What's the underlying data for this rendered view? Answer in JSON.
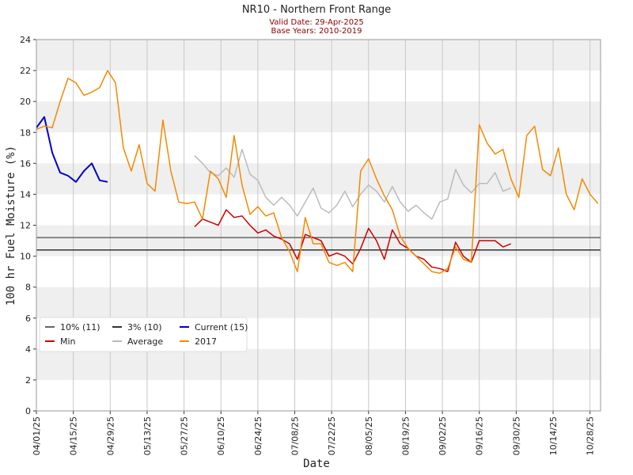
{
  "chart_data": {
    "type": "line",
    "title": "NR10 - Northern Front Range",
    "subtitle": [
      "Valid Date: 29-Apr-2025",
      "Base Years: 2010-2019"
    ],
    "xlabel": "Date",
    "ylabel": "100 hr Fuel Moisture (%)",
    "xlim": [
      "2025-04-01",
      "2025-11-01"
    ],
    "ylim": [
      0,
      24
    ],
    "yticks": [
      0,
      2,
      4,
      6,
      8,
      10,
      12,
      14,
      16,
      18,
      20,
      22,
      24
    ],
    "xticks": [
      {
        "value": "2025-04-01",
        "label": "04/01/25"
      },
      {
        "value": "2025-04-15",
        "label": "04/15/25"
      },
      {
        "value": "2025-04-29",
        "label": "04/29/25"
      },
      {
        "value": "2025-05-13",
        "label": "05/13/25"
      },
      {
        "value": "2025-05-27",
        "label": "05/27/25"
      },
      {
        "value": "2025-06-10",
        "label": "06/10/25"
      },
      {
        "value": "2025-06-24",
        "label": "06/24/25"
      },
      {
        "value": "2025-07-08",
        "label": "07/08/25"
      },
      {
        "value": "2025-07-22",
        "label": "07/22/25"
      },
      {
        "value": "2025-08-05",
        "label": "08/05/25"
      },
      {
        "value": "2025-08-19",
        "label": "08/19/25"
      },
      {
        "value": "2025-09-02",
        "label": "09/02/25"
      },
      {
        "value": "2025-09-16",
        "label": "09/16/25"
      },
      {
        "value": "2025-09-30",
        "label": "09/30/25"
      },
      {
        "value": "2025-10-14",
        "label": "10/14/25"
      },
      {
        "value": "2025-10-28",
        "label": "10/28/25"
      }
    ],
    "grid": true,
    "bands": true,
    "legend": "lower left",
    "x": [
      "2025-04-01",
      "2025-04-04",
      "2025-04-07",
      "2025-04-10",
      "2025-04-13",
      "2025-04-16",
      "2025-04-19",
      "2025-04-22",
      "2025-04-25",
      "2025-04-28",
      "2025-05-01",
      "2025-05-04",
      "2025-05-07",
      "2025-05-10",
      "2025-05-13",
      "2025-05-16",
      "2025-05-19",
      "2025-05-22",
      "2025-05-25",
      "2025-05-28",
      "2025-05-31",
      "2025-06-03",
      "2025-06-06",
      "2025-06-09",
      "2025-06-12",
      "2025-06-15",
      "2025-06-18",
      "2025-06-21",
      "2025-06-24",
      "2025-06-27",
      "2025-06-30",
      "2025-07-03",
      "2025-07-06",
      "2025-07-09",
      "2025-07-12",
      "2025-07-15",
      "2025-07-18",
      "2025-07-21",
      "2025-07-24",
      "2025-07-27",
      "2025-07-30",
      "2025-08-02",
      "2025-08-05",
      "2025-08-08",
      "2025-08-11",
      "2025-08-14",
      "2025-08-17",
      "2025-08-20",
      "2025-08-23",
      "2025-08-26",
      "2025-08-29",
      "2025-09-01",
      "2025-09-04",
      "2025-09-07",
      "2025-09-10",
      "2025-09-13",
      "2025-09-16",
      "2025-09-19",
      "2025-09-22",
      "2025-09-25",
      "2025-09-28",
      "2025-10-01",
      "2025-10-04",
      "2025-10-07",
      "2025-10-10",
      "2025-10-13",
      "2025-10-16",
      "2025-10-19",
      "2025-10-22",
      "2025-10-25",
      "2025-10-28",
      "2025-10-31"
    ],
    "reference_lines": [
      {
        "name": "10% (11)",
        "color": "#666666",
        "value": 11.2
      },
      {
        "name": "3% (10)",
        "color": "#333333",
        "value": 10.4
      }
    ],
    "series": [
      {
        "name": "Current (15)",
        "color": "#0000cc",
        "values": [
          18.3,
          19.0,
          16.7,
          15.4,
          15.2,
          14.8,
          15.5,
          16.0,
          14.9,
          14.8,
          null,
          null,
          null,
          null,
          null,
          null,
          null,
          null,
          null,
          null,
          null,
          null,
          null,
          null,
          null,
          null,
          null,
          null,
          null,
          null,
          null,
          null,
          null,
          null,
          null,
          null,
          null,
          null,
          null,
          null,
          null,
          null,
          null,
          null,
          null,
          null,
          null,
          null,
          null,
          null,
          null,
          null,
          null,
          null,
          null,
          null,
          null,
          null,
          null,
          null,
          null,
          null,
          null,
          null,
          null,
          null,
          null,
          null,
          null,
          null,
          null,
          null
        ]
      },
      {
        "name": "Min",
        "color": "#cc0000",
        "values": [
          null,
          null,
          null,
          null,
          null,
          null,
          null,
          null,
          null,
          null,
          null,
          null,
          null,
          null,
          null,
          null,
          null,
          null,
          null,
          null,
          11.9,
          12.4,
          12.2,
          12.0,
          13.0,
          12.5,
          12.6,
          12.0,
          11.5,
          11.7,
          11.3,
          11.1,
          10.8,
          9.8,
          11.4,
          11.2,
          11.0,
          10.0,
          10.2,
          10.0,
          9.5,
          10.5,
          11.8,
          11.0,
          9.8,
          11.7,
          10.8,
          10.5,
          10.0,
          9.8,
          9.3,
          9.2,
          9.0,
          10.9,
          10.0,
          9.6,
          11.0,
          11.0,
          11.0,
          10.6,
          10.8,
          null,
          null,
          null,
          null,
          null,
          null,
          null,
          null,
          null,
          null,
          null
        ]
      },
      {
        "name": "Average",
        "color": "#bbbbbb",
        "values": [
          null,
          null,
          null,
          null,
          null,
          null,
          null,
          null,
          null,
          null,
          null,
          null,
          null,
          null,
          null,
          null,
          null,
          null,
          null,
          null,
          16.5,
          16.0,
          15.4,
          15.2,
          15.7,
          15.1,
          16.9,
          15.3,
          14.9,
          13.8,
          13.3,
          13.8,
          13.3,
          12.6,
          13.5,
          14.4,
          13.1,
          12.8,
          13.3,
          14.2,
          13.2,
          14.0,
          14.6,
          14.2,
          13.5,
          14.5,
          13.5,
          12.9,
          13.3,
          12.8,
          12.4,
          13.5,
          13.7,
          15.6,
          14.6,
          14.1,
          14.7,
          14.7,
          15.4,
          14.2,
          14.4,
          null,
          null,
          null,
          null,
          null,
          null,
          null,
          null,
          null,
          null,
          null
        ]
      },
      {
        "name": "2017",
        "color": "#f28a00",
        "values": [
          18.2,
          18.4,
          18.3,
          20.0,
          21.5,
          21.2,
          20.4,
          20.6,
          20.9,
          22.0,
          21.2,
          17.0,
          15.5,
          17.2,
          14.7,
          14.2,
          18.8,
          15.5,
          13.5,
          13.4,
          13.5,
          12.4,
          15.5,
          15.0,
          13.8,
          17.8,
          14.6,
          12.7,
          13.2,
          12.6,
          12.8,
          11.2,
          10.3,
          9.0,
          12.5,
          10.8,
          10.8,
          9.6,
          9.4,
          9.6,
          9.0,
          15.5,
          16.3,
          15.0,
          13.9,
          13.0,
          11.3,
          10.5,
          10.0,
          9.5,
          9.0,
          8.9,
          9.2,
          10.6,
          9.8,
          9.6,
          18.5,
          17.3,
          16.6,
          16.9,
          15.0,
          13.8,
          17.8,
          18.4,
          15.6,
          15.2,
          17.0,
          14.0,
          13.0,
          15.0,
          14.0,
          13.4
        ]
      }
    ]
  }
}
